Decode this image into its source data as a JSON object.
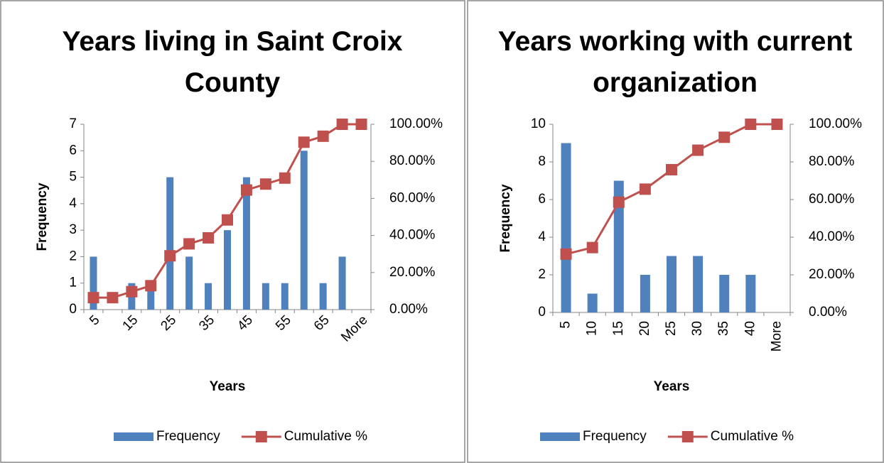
{
  "chart_data": [
    {
      "type": "combo",
      "title": "Years living in Saint Croix County",
      "categories": [
        "5",
        null,
        "15",
        null,
        "25",
        null,
        "35",
        null,
        "45",
        null,
        "55",
        null,
        "65",
        null,
        "More"
      ],
      "series": [
        {
          "name": "Frequency",
          "type": "bar",
          "color": "#4f81bd",
          "values": [
            2,
            0,
            1,
            1,
            5,
            2,
            1,
            3,
            5,
            1,
            1,
            6,
            1,
            2,
            0
          ]
        },
        {
          "name": "Cumulative %",
          "type": "line",
          "axis": "y2",
          "color": "#c0504d",
          "values": [
            6.45,
            6.45,
            9.68,
            12.9,
            29.03,
            35.48,
            38.71,
            48.39,
            64.52,
            67.74,
            70.97,
            90.32,
            93.55,
            100,
            100
          ]
        }
      ],
      "x_label": "Years",
      "y_label": "Frequency",
      "ylim": [
        0,
        7
      ],
      "yticks": [
        0,
        1,
        2,
        3,
        4,
        5,
        6,
        7
      ],
      "y2lim": [
        0,
        100
      ],
      "y2ticks": [
        {
          "value": 0,
          "label": "0.00%"
        },
        {
          "value": 20,
          "label": "20.00%"
        },
        {
          "value": 40,
          "label": "40.00%"
        },
        {
          "value": 60,
          "label": "60.00%"
        },
        {
          "value": 80,
          "label": "80.00%"
        },
        {
          "value": 100,
          "label": "100.00%"
        }
      ],
      "legend": "bottom"
    },
    {
      "type": "combo",
      "title": "Years working with current organization",
      "categories": [
        "5",
        "10",
        "15",
        "20",
        "25",
        "30",
        "35",
        "40",
        "More"
      ],
      "series": [
        {
          "name": "Frequency",
          "type": "bar",
          "color": "#4f81bd",
          "values": [
            9,
            1,
            7,
            2,
            3,
            3,
            2,
            2,
            0
          ]
        },
        {
          "name": "Cumulative %",
          "type": "line",
          "axis": "y2",
          "color": "#c0504d",
          "values": [
            31.03,
            34.48,
            58.62,
            65.52,
            75.86,
            86.21,
            93.1,
            100,
            100
          ]
        }
      ],
      "x_label": "Years",
      "y_label": "Frequency",
      "ylim": [
        0,
        10
      ],
      "yticks": [
        0,
        2,
        4,
        6,
        8,
        10
      ],
      "y2lim": [
        0,
        100
      ],
      "y2ticks": [
        {
          "value": 0,
          "label": "0.00%"
        },
        {
          "value": 20,
          "label": "20.00%"
        },
        {
          "value": 40,
          "label": "40.00%"
        },
        {
          "value": 60,
          "label": "60.00%"
        },
        {
          "value": 80,
          "label": "80.00%"
        },
        {
          "value": 100,
          "label": "100.00%"
        }
      ],
      "legend": "bottom"
    }
  ]
}
